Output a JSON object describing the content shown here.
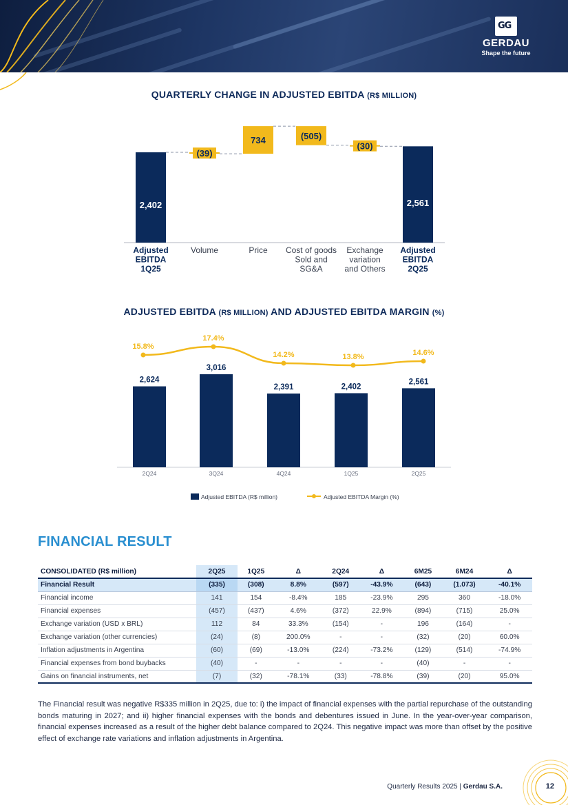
{
  "brand": {
    "name": "GERDAU",
    "tagline": "Shape the future",
    "mark": "GG",
    "navy": "#0b2a5b",
    "gold": "#f2b91c",
    "blue": "#2a8fd0"
  },
  "chart1_title": {
    "main": "QUARTERLY CHANGE IN ADJUSTED EBITDA",
    "unit": "(R$ MILLION)"
  },
  "chart2_title": {
    "main1": "ADJUSTED EBITDA",
    "unit1": "(R$ MILLION)",
    "main2": "AND ADJUSTED EBITDA MARGIN",
    "unit2": "(%)"
  },
  "chart_data": [
    {
      "type": "bar",
      "subtype": "waterfall",
      "title": "QUARTERLY CHANGE IN ADJUSTED EBITDA (R$ MILLION)",
      "ylim": [
        0,
        3300
      ],
      "categories": [
        [
          "Adjusted",
          "EBITDA",
          "1Q25"
        ],
        [
          "Volume"
        ],
        [
          "Price"
        ],
        [
          "Cost of goods",
          "Sold and",
          "SG&A"
        ],
        [
          "Exchange",
          "variation",
          "and Others"
        ],
        [
          "Adjusted",
          "EBITDA",
          "2Q25"
        ]
      ],
      "bold_categories": [
        0,
        5
      ],
      "steps": [
        {
          "kind": "total",
          "value": 2402,
          "label": "2,402"
        },
        {
          "kind": "delta",
          "value": -39,
          "label": "(39)"
        },
        {
          "kind": "delta",
          "value": 734,
          "label": "734"
        },
        {
          "kind": "delta",
          "value": -505,
          "label": "(505)"
        },
        {
          "kind": "delta",
          "value": -30,
          "label": "(30)"
        },
        {
          "kind": "total",
          "value": 2561,
          "label": "2,561"
        }
      ]
    },
    {
      "type": "bar",
      "subtype": "bar-line-combo",
      "title": "ADJUSTED EBITDA (R$ MILLION) AND ADJUSTED EBITDA MARGIN (%)",
      "categories": [
        "2Q24",
        "3Q24",
        "4Q24",
        "1Q25",
        "2Q25"
      ],
      "ylim": [
        0,
        3800
      ],
      "margin_ylim": [
        0,
        19
      ],
      "series": [
        {
          "name": "Adjusted EBITDA (R$ million)",
          "kind": "bar",
          "values": [
            2624,
            3016,
            2391,
            2402,
            2561
          ],
          "labels": [
            "2,624",
            "3,016",
            "2,391",
            "2,402",
            "2,561"
          ]
        },
        {
          "name": "Adjusted EBITDA Margin (%)",
          "kind": "line",
          "values": [
            15.8,
            17.4,
            14.2,
            13.8,
            14.6
          ],
          "labels": [
            "15.8%",
            "17.4%",
            "14.2%",
            "13.8%",
            "14.6%"
          ]
        }
      ],
      "legend": "bottom"
    }
  ],
  "financial": {
    "title": "FINANCIAL RESULT",
    "headers": [
      "CONSOLIDATED (R$ million)",
      "2Q25",
      "1Q25",
      "Δ",
      "2Q24",
      "Δ",
      "6M25",
      "6M24",
      "Δ"
    ],
    "rows": [
      [
        "Financial Result",
        "(335)",
        "(308)",
        "8.8%",
        "(597)",
        "-43.9%",
        "(643)",
        "(1.073)",
        "-40.1%"
      ],
      [
        "Financial income",
        "141",
        "154",
        "-8.4%",
        "185",
        "-23.9%",
        "295",
        "360",
        "-18.0%"
      ],
      [
        "Financial expenses",
        "(457)",
        "(437)",
        "4.6%",
        "(372)",
        "22.9%",
        "(894)",
        "(715)",
        "25.0%"
      ],
      [
        "Exchange variation (USD x BRL)",
        "112",
        "84",
        "33.3%",
        "(154)",
        "-",
        "196",
        "(164)",
        "-"
      ],
      [
        "Exchange variation (other currencies)",
        "(24)",
        "(8)",
        "200.0%",
        "-",
        "-",
        "(32)",
        "(20)",
        "60.0%"
      ],
      [
        "Inflation adjustments in Argentina",
        "(60)",
        "(69)",
        "-13.0%",
        "(224)",
        "-73.2%",
        "(129)",
        "(514)",
        "-74.9%"
      ],
      [
        "Financial expenses from bond buybacks",
        "(40)",
        "-",
        "-",
        "-",
        "-",
        "(40)",
        "-",
        "-"
      ],
      [
        "Gains on financial instruments, net",
        "(7)",
        "(32)",
        "-78.1%",
        "(33)",
        "-78.8%",
        "(39)",
        "(20)",
        "95.0%"
      ]
    ],
    "paragraph": "The Financial result was negative R$335 million in 2Q25, due to: i) the impact of financial expenses with the partial repurchase of the outstanding bonds maturing in 2027; and ii) higher financial expenses with the bonds and debentures issued in June. In the year-over-year comparison, financial expenses increased as a result of the higher debt balance compared to 2Q24. This negative impact was more than offset by the positive effect of exchange rate variations and inflation adjustments in Argentina."
  },
  "footer": {
    "text": "Quarterly Results 2025",
    "separator": "|",
    "company": "Gerdau S.A.",
    "page": "12"
  }
}
